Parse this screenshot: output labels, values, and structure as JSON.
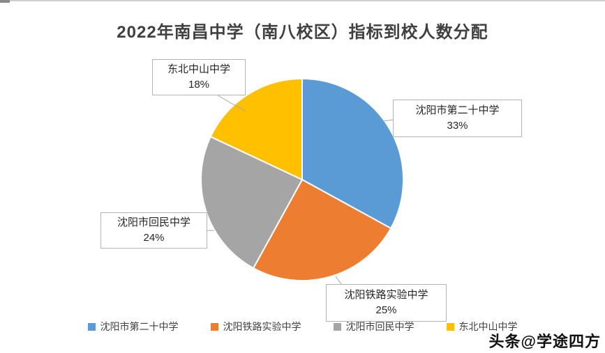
{
  "title": "2022年南昌中学（南八校区）指标到校人数分配",
  "watermark": "头条@学途四方",
  "chart_data": {
    "type": "pie",
    "title": "2022年南昌中学（南八校区）指标到校人数分配",
    "labels": [
      "沈阳市第二十中学",
      "沈阳铁路实验中学",
      "沈阳市回民中学",
      "东北中山中学"
    ],
    "values": [
      33,
      25,
      24,
      18
    ],
    "colors": [
      "#5B9BD5",
      "#ED7D31",
      "#A5A5A5",
      "#FFC000"
    ],
    "start_angle_deg": 0,
    "direction": "clockwise",
    "legend_position": "bottom",
    "data_labels_shown": true
  },
  "data_labels": [
    {
      "text": "东北中山中学",
      "pct": "18%"
    },
    {
      "text": "沈阳市第二十中学",
      "pct": "33%"
    },
    {
      "text": "沈阳市回民中学",
      "pct": "24%"
    },
    {
      "text": "沈阳铁路实验中学",
      "pct": "25%"
    }
  ]
}
